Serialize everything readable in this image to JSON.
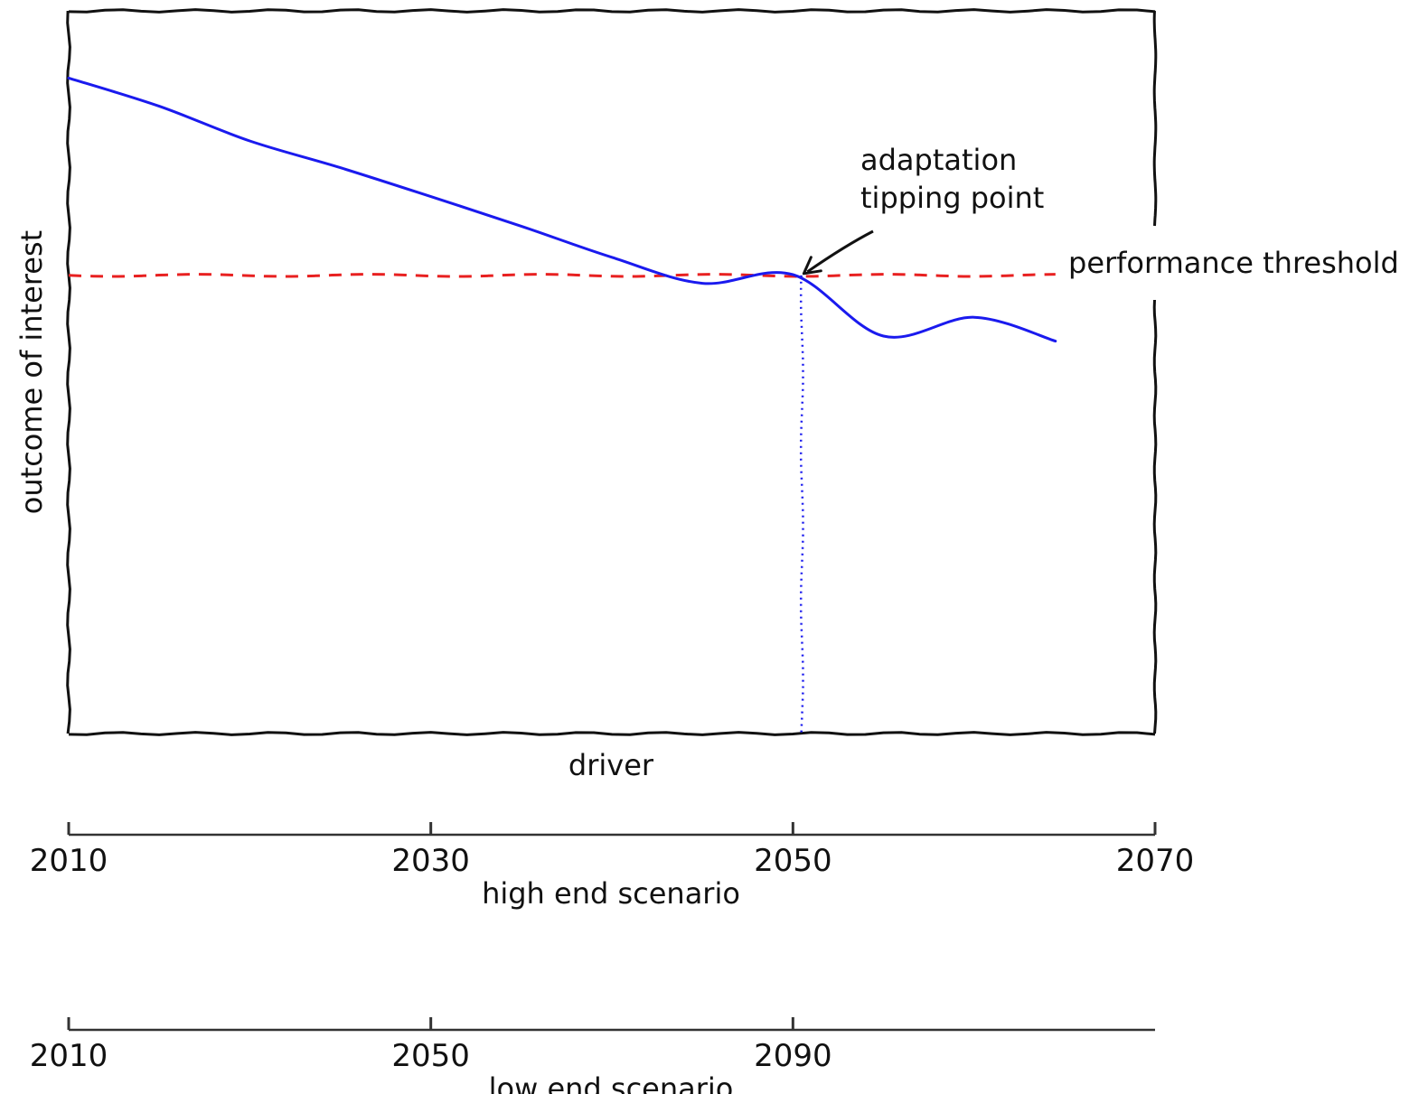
{
  "chart_data": {
    "type": "line",
    "xlabel": "driver",
    "ylabel": "outcome of interest",
    "xlim": [
      2010,
      2070
    ],
    "ylim": [
      0,
      1
    ],
    "grid": false,
    "x_ticks": false,
    "y_ticks": false,
    "series": [
      {
        "name": "",
        "color": "#1a1aee",
        "style": "solid",
        "x": [
          2010,
          2015,
          2020,
          2025,
          2030,
          2035,
          2040,
          2045,
          2050,
          2055,
          2060,
          2064.5
        ],
        "y": [
          0.907,
          0.868,
          0.82,
          0.783,
          0.743,
          0.702,
          0.659,
          0.623,
          0.635,
          0.55,
          0.576,
          0.543
        ]
      }
    ],
    "threshold": {
      "label": "performance threshold",
      "y": 0.634,
      "color": "#e82020",
      "style": "dashed",
      "x_start": 2010,
      "x_end": 2064.5
    },
    "tipping_point": {
      "label_lines": [
        "adaptation",
        "tipping point"
      ],
      "x": 2050.5,
      "y": 0.634,
      "drop_line_color": "#1a1aee",
      "drop_line_style": "dotted"
    },
    "secondary_axes": [
      {
        "label": "high end scenario",
        "min": 2010,
        "max": 2070,
        "ticks": [
          2010,
          2030,
          2050,
          2070
        ],
        "tick_labels": [
          "2010",
          "2030",
          "2050",
          "2070"
        ]
      },
      {
        "label": "low end scenario",
        "min": 2010,
        "max": 2130,
        "ticks": [
          2010,
          2050,
          2090
        ],
        "tick_labels": [
          "2010",
          "2050",
          "2090"
        ]
      }
    ]
  }
}
